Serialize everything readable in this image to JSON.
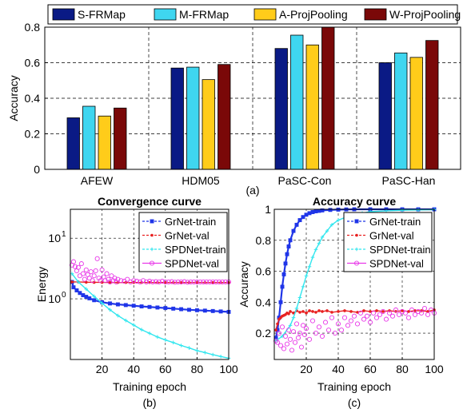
{
  "figure": {
    "captions": [
      "(a)",
      "(b)",
      "(c)"
    ]
  },
  "chart_data": [
    {
      "id": "a",
      "type": "bar",
      "title": "",
      "xlabel": "",
      "ylabel": "Accuracy",
      "categories": [
        "AFEW",
        "HDM05",
        "PaSC-Con",
        "PaSC-Han"
      ],
      "ylim": [
        0,
        0.8
      ],
      "yticks": [
        "0",
        "0.2",
        "0.4",
        "0.6",
        "0.8"
      ],
      "grid": true,
      "legend_position": "top",
      "series": [
        {
          "name": "S-FRMap",
          "color": "#0a1a85",
          "values": [
            0.29,
            0.57,
            0.68,
            0.6
          ]
        },
        {
          "name": "M-FRMap",
          "color": "#3fd6f0",
          "values": [
            0.355,
            0.575,
            0.755,
            0.655
          ]
        },
        {
          "name": "A-ProjPooling",
          "color": "#ffcc1a",
          "values": [
            0.3,
            0.505,
            0.7,
            0.63
          ]
        },
        {
          "name": "W-ProjPooling",
          "color": "#7a0808",
          "values": [
            0.345,
            0.59,
            0.8,
            0.725
          ]
        }
      ]
    },
    {
      "id": "b",
      "type": "line",
      "title": "Convergence curve",
      "xlabel": "Training epoch",
      "ylabel": "Energy",
      "log_y": true,
      "xlim": [
        0,
        100
      ],
      "ylim": [
        0.1,
        30
      ],
      "xticks": [
        "20",
        "40",
        "60",
        "80",
        "100"
      ],
      "ytick_labels": [
        {
          "base": "10",
          "exp": "0"
        },
        {
          "base": "10",
          "exp": "1"
        }
      ],
      "grid": true,
      "legend_position": "top-right",
      "series": [
        {
          "name": "GrNet-train",
          "color": "#1f35e8",
          "marker": "square",
          "x": [
            1,
            2,
            4,
            6,
            8,
            10,
            12,
            15,
            20,
            25,
            30,
            35,
            40,
            45,
            50,
            55,
            60,
            65,
            70,
            75,
            80,
            85,
            90,
            95,
            100
          ],
          "y": [
            1.9,
            1.55,
            1.38,
            1.25,
            1.15,
            1.08,
            1.02,
            0.95,
            0.88,
            0.84,
            0.81,
            0.79,
            0.77,
            0.75,
            0.735,
            0.72,
            0.705,
            0.69,
            0.675,
            0.66,
            0.65,
            0.64,
            0.63,
            0.62,
            0.61
          ]
        },
        {
          "name": "GrNet-val",
          "color": "#e82020",
          "marker": "dot",
          "x": [
            1,
            5,
            10,
            15,
            20,
            25,
            30,
            35,
            40,
            45,
            50,
            55,
            60,
            65,
            70,
            75,
            80,
            85,
            90,
            95,
            100
          ],
          "y": [
            1.9,
            1.9,
            1.88,
            1.87,
            1.87,
            1.86,
            1.86,
            1.86,
            1.86,
            1.86,
            1.86,
            1.86,
            1.86,
            1.86,
            1.86,
            1.86,
            1.86,
            1.86,
            1.86,
            1.86,
            1.86
          ]
        },
        {
          "name": "SPDNet-train",
          "color": "#30e6ee",
          "marker": "cross",
          "x": [
            1,
            5,
            10,
            15,
            20,
            25,
            30,
            35,
            40,
            45,
            50,
            55,
            60,
            65,
            70,
            75,
            80,
            85,
            90,
            95,
            100
          ],
          "y": [
            2.6,
            1.9,
            1.45,
            1.1,
            0.85,
            0.66,
            0.53,
            0.44,
            0.37,
            0.31,
            0.27,
            0.235,
            0.21,
            0.19,
            0.17,
            0.155,
            0.14,
            0.13,
            0.12,
            0.112,
            0.105
          ]
        },
        {
          "name": "SPDNet-val",
          "color": "#e838e8",
          "marker": "circle",
          "x": [
            1,
            2,
            3,
            4,
            5,
            6,
            7,
            8,
            9,
            10,
            11,
            12,
            13,
            14,
            15,
            16,
            17,
            18,
            19,
            20,
            21,
            22,
            23,
            24,
            25,
            26,
            27,
            28,
            29,
            30,
            32,
            34,
            36,
            38,
            40,
            42,
            44,
            46,
            48,
            50,
            52,
            54,
            56,
            58,
            60,
            62,
            64,
            66,
            68,
            70,
            72,
            74,
            76,
            78,
            80,
            82,
            84,
            86,
            88,
            90,
            92,
            94,
            96,
            98,
            100
          ],
          "y": [
            3.6,
            4.1,
            3.4,
            2.9,
            3.3,
            2.4,
            3.8,
            2.6,
            2.1,
            3.0,
            2.5,
            2.2,
            2.8,
            2.0,
            2.4,
            2.9,
            4.6,
            2.2,
            2.0,
            3.0,
            2.3,
            2.0,
            2.6,
            2.1,
            1.9,
            2.4,
            2.0,
            2.2,
            1.9,
            2.1,
            2.0,
            1.95,
            2.1,
            1.9,
            2.0,
            1.95,
            1.9,
            2.0,
            1.9,
            1.95,
            1.9,
            1.92,
            1.9,
            1.95,
            1.9,
            1.9,
            1.92,
            1.88,
            1.9,
            1.9,
            1.92,
            1.88,
            1.9,
            1.9,
            1.9,
            1.9,
            1.9,
            1.9,
            1.9,
            1.9,
            1.9,
            1.9,
            1.9,
            1.9,
            1.9
          ]
        }
      ]
    },
    {
      "id": "c",
      "type": "line",
      "title": "Accuracy curve",
      "xlabel": "Training epoch",
      "ylabel": "Accuracy",
      "xlim": [
        0,
        100
      ],
      "ylim": [
        0.03,
        1.0
      ],
      "xticks": [
        "20",
        "40",
        "60",
        "80",
        "100"
      ],
      "yticks": [
        "0.2",
        "0.4",
        "0.6",
        "0.8",
        "1"
      ],
      "grid": true,
      "legend_position": "top-right",
      "series": [
        {
          "name": "GrNet-train",
          "color": "#1f35e8",
          "marker": "square",
          "x": [
            1,
            2,
            3,
            4,
            5,
            6,
            7,
            8,
            9,
            10,
            12,
            14,
            16,
            18,
            20,
            22,
            24,
            26,
            28,
            30,
            35,
            40,
            45,
            50,
            60,
            70,
            80,
            90,
            100
          ],
          "y": [
            0.17,
            0.22,
            0.3,
            0.4,
            0.5,
            0.58,
            0.65,
            0.71,
            0.76,
            0.8,
            0.86,
            0.9,
            0.93,
            0.95,
            0.965,
            0.975,
            0.982,
            0.987,
            0.99,
            0.993,
            0.996,
            0.998,
            0.999,
            1.0,
            1.0,
            1.0,
            1.0,
            1.0,
            1.0
          ]
        },
        {
          "name": "GrNet-val",
          "color": "#e82020",
          "marker": "dot",
          "x": [
            1,
            2,
            3,
            4,
            5,
            6,
            7,
            8,
            9,
            10,
            12,
            14,
            16,
            18,
            20,
            22,
            24,
            26,
            28,
            30,
            33,
            36,
            40,
            44,
            48,
            52,
            56,
            60,
            64,
            68,
            72,
            76,
            80,
            84,
            88,
            92,
            96,
            100
          ],
          "y": [
            0.22,
            0.26,
            0.29,
            0.3,
            0.31,
            0.315,
            0.32,
            0.33,
            0.325,
            0.34,
            0.33,
            0.345,
            0.335,
            0.34,
            0.33,
            0.345,
            0.34,
            0.335,
            0.345,
            0.34,
            0.345,
            0.335,
            0.34,
            0.345,
            0.34,
            0.335,
            0.345,
            0.34,
            0.345,
            0.34,
            0.345,
            0.34,
            0.345,
            0.34,
            0.345,
            0.345,
            0.34,
            0.35
          ]
        },
        {
          "name": "SPDNet-train",
          "color": "#30e6ee",
          "marker": "cross",
          "x": [
            1,
            5,
            10,
            12,
            14,
            16,
            18,
            20,
            22,
            24,
            26,
            28,
            30,
            33,
            36,
            40,
            45,
            50,
            55,
            60,
            70,
            80,
            90,
            100
          ],
          "y": [
            0.15,
            0.18,
            0.25,
            0.3,
            0.36,
            0.43,
            0.5,
            0.57,
            0.63,
            0.69,
            0.74,
            0.78,
            0.82,
            0.86,
            0.9,
            0.93,
            0.95,
            0.965,
            0.975,
            0.985,
            0.99,
            0.994,
            0.996,
            0.998
          ]
        },
        {
          "name": "SPDNet-val",
          "color": "#e838e8",
          "marker": "circle",
          "x": [
            1,
            2,
            3,
            4,
            5,
            6,
            7,
            8,
            9,
            10,
            11,
            12,
            13,
            14,
            15,
            16,
            17,
            18,
            19,
            20,
            22,
            24,
            26,
            28,
            30,
            32,
            34,
            36,
            38,
            40,
            42,
            44,
            46,
            48,
            50,
            52,
            54,
            56,
            58,
            60,
            62,
            64,
            66,
            68,
            70,
            72,
            74,
            76,
            78,
            80,
            82,
            84,
            86,
            88,
            90,
            92,
            94,
            96,
            98,
            100
          ],
          "y": [
            0.15,
            0.14,
            0.2,
            0.12,
            0.24,
            0.1,
            0.18,
            0.13,
            0.22,
            0.16,
            0.09,
            0.21,
            0.14,
            0.26,
            0.17,
            0.2,
            0.11,
            0.25,
            0.19,
            0.23,
            0.16,
            0.28,
            0.2,
            0.24,
            0.18,
            0.27,
            0.22,
            0.3,
            0.2,
            0.26,
            0.22,
            0.3,
            0.25,
            0.28,
            0.31,
            0.26,
            0.33,
            0.29,
            0.31,
            0.27,
            0.33,
            0.3,
            0.32,
            0.34,
            0.29,
            0.33,
            0.31,
            0.35,
            0.32,
            0.34,
            0.33,
            0.3,
            0.35,
            0.32,
            0.34,
            0.33,
            0.36,
            0.32,
            0.35,
            0.33
          ]
        }
      ]
    }
  ]
}
